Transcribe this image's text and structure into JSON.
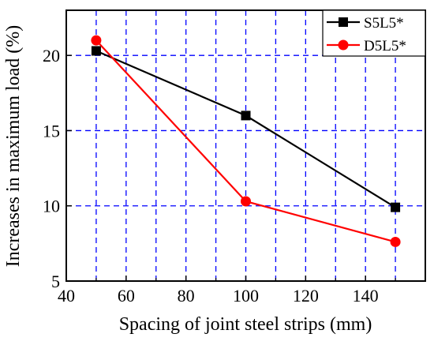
{
  "chart_data": {
    "type": "line",
    "xlabel": "Spacing of joint steel strips (mm)",
    "ylabel": "Increases in maximum load (%)",
    "xlim": [
      40,
      160
    ],
    "ylim": [
      5,
      23
    ],
    "x_ticks": [
      40,
      60,
      80,
      100,
      120,
      140
    ],
    "y_ticks": [
      5,
      10,
      15,
      20
    ],
    "x_tick_labels": [
      "40",
      "60",
      "80",
      "100",
      "120",
      "140"
    ],
    "y_tick_labels": [
      "5",
      "10",
      "15",
      "20"
    ],
    "x_minor_grid": [
      50,
      70,
      90,
      110,
      130,
      150
    ],
    "grid": true,
    "grid_color": "#0000ff",
    "legend_position": "top-right",
    "x": [
      50,
      100,
      150
    ],
    "series": [
      {
        "name": "S5L5*",
        "values": [
          20.3,
          16.0,
          9.9
        ],
        "color": "#000000",
        "marker": "square"
      },
      {
        "name": "D5L5*",
        "values": [
          21.0,
          10.3,
          7.6
        ],
        "color": "#ff0000",
        "marker": "circle"
      }
    ]
  }
}
